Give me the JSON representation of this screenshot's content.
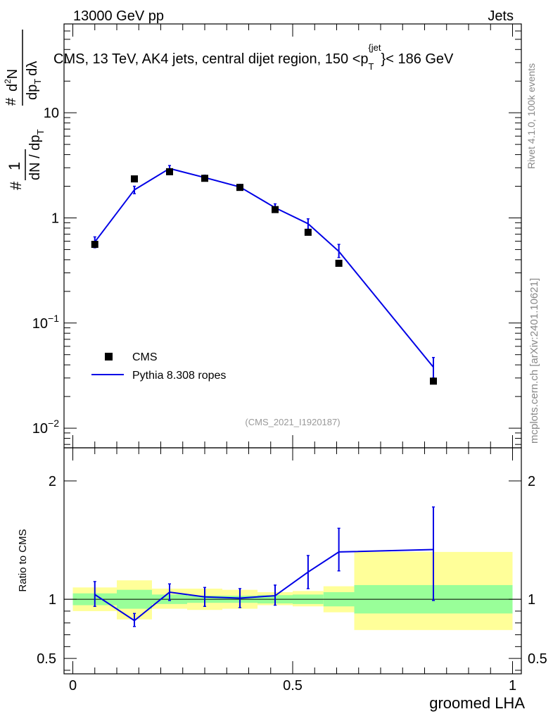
{
  "header": {
    "energy_label": "13000 GeV pp",
    "category_label": "Jets",
    "main_title": "CMS, 13 TeV, AK4 jets, central dijet region, 150 <p",
    "title_pt_sub": "T",
    "title_pt_sup": "{jet",
    "title_tail": "}< 186 GeV",
    "rivet_label": "Rivet 4.1.0,  100k events",
    "source_label": "mcplots.cern.ch [arXiv:2401.10621]",
    "analysis_id": "(CMS_2021_I1920187)"
  },
  "legend": {
    "data_label": "CMS",
    "mc_label": "Pythia 8.308 ropes"
  },
  "colors": {
    "mc_line": "#0000e6",
    "band_inner": "#99ff99",
    "band_outer": "#ffff99",
    "data_marker": "#000000"
  },
  "chart_data": [
    {
      "type": "scatter",
      "title": "CMS, 13 TeV, AK4 jets, central dijet region, 150 < pT jet < 186 GeV",
      "xlabel": "groomed LHA",
      "ylabel_parts": [
        "1",
        "dN / dp",
        "T",
        "d",
        "2",
        "N",
        "dp",
        "dλ"
      ],
      "ylabel_hash": "#",
      "yscale": "log",
      "xlim": [
        -0.02,
        1.02
      ],
      "ylim": [
        0.0065,
        70
      ],
      "yticks": [
        {
          "value": 0.01,
          "base": "10",
          "exp": "−2"
        },
        {
          "value": 0.1,
          "base": "10",
          "exp": "−1"
        },
        {
          "value": 1,
          "base": "1",
          "exp": ""
        },
        {
          "value": 10,
          "base": "10",
          "exp": ""
        }
      ],
      "series": [
        {
          "name": "CMS",
          "x": [
            0.05,
            0.14,
            0.22,
            0.3,
            0.38,
            0.46,
            0.535,
            0.605,
            0.82
          ],
          "values": [
            0.56,
            2.35,
            2.75,
            2.38,
            1.95,
            1.2,
            0.73,
            0.37,
            0.028
          ]
        },
        {
          "name": "Pythia 8.308 ropes",
          "x": [
            0.05,
            0.14,
            0.22,
            0.3,
            0.38,
            0.46,
            0.535,
            0.605,
            0.82
          ],
          "values": [
            0.59,
            1.85,
            2.95,
            2.42,
            1.97,
            1.25,
            0.88,
            0.48,
            0.038
          ],
          "err_lo": [
            0.52,
            1.7,
            2.75,
            2.3,
            1.88,
            1.15,
            0.78,
            0.42,
            0.03
          ],
          "err_hi": [
            0.66,
            2.0,
            3.15,
            2.55,
            2.08,
            1.36,
            0.98,
            0.56,
            0.047
          ]
        }
      ]
    },
    {
      "type": "line",
      "title": "Ratio to CMS",
      "xlabel": "groomed LHA",
      "ylabel": "Ratio to CMS",
      "xlim": [
        -0.02,
        1.02
      ],
      "ylim": [
        0.37,
        2.28
      ],
      "yticks": [
        0.5,
        1,
        2
      ],
      "xticks": [
        0,
        0.5,
        1
      ],
      "bins": [
        0,
        0.1,
        0.18,
        0.26,
        0.34,
        0.42,
        0.5,
        0.57,
        0.64,
        1.0
      ],
      "band_inner": [
        {
          "lo": 0.95,
          "hi": 1.05
        },
        {
          "lo": 0.92,
          "hi": 1.08
        },
        {
          "lo": 0.96,
          "hi": 1.04
        },
        {
          "lo": 0.97,
          "hi": 1.03
        },
        {
          "lo": 0.97,
          "hi": 1.03
        },
        {
          "lo": 0.965,
          "hi": 1.035
        },
        {
          "lo": 0.96,
          "hi": 1.04
        },
        {
          "lo": 0.94,
          "hi": 1.06
        },
        {
          "lo": 0.88,
          "hi": 1.12
        }
      ],
      "band_outer": [
        {
          "lo": 0.9,
          "hi": 1.1
        },
        {
          "lo": 0.83,
          "hi": 1.16
        },
        {
          "lo": 0.92,
          "hi": 1.09
        },
        {
          "lo": 0.91,
          "hi": 1.09
        },
        {
          "lo": 0.92,
          "hi": 1.08
        },
        {
          "lo": 0.95,
          "hi": 1.06
        },
        {
          "lo": 0.94,
          "hi": 1.07
        },
        {
          "lo": 0.89,
          "hi": 1.11
        },
        {
          "lo": 0.74,
          "hi": 1.4
        }
      ],
      "series": [
        {
          "name": "Pythia 8.308 ropes",
          "x": [
            0.05,
            0.14,
            0.22,
            0.3,
            0.38,
            0.46,
            0.535,
            0.605,
            0.82
          ],
          "values": [
            1.04,
            0.82,
            1.06,
            1.02,
            1.01,
            1.03,
            1.23,
            1.4,
            1.42
          ],
          "err_lo": [
            0.94,
            0.77,
            0.99,
            0.94,
            0.93,
            0.95,
            1.09,
            1.24,
            0.99
          ],
          "err_hi": [
            1.15,
            0.88,
            1.13,
            1.1,
            1.09,
            1.12,
            1.37,
            1.6,
            1.78
          ]
        }
      ]
    }
  ]
}
